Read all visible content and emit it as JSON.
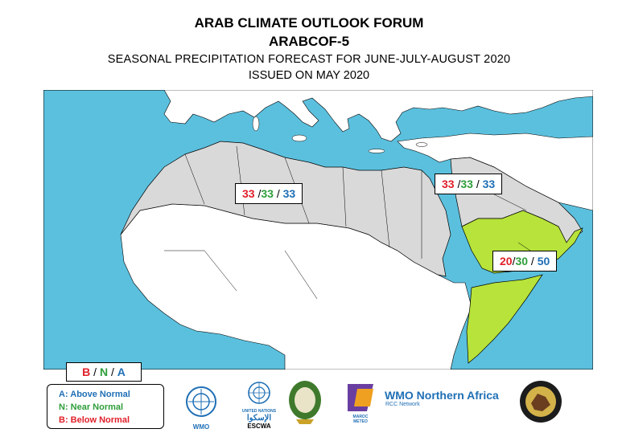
{
  "title": {
    "line1": "ARAB CLIMATE OUTLOOK FORUM",
    "line2": "ARABCOF-5",
    "line3": "SEASONAL PRECIPITATION FORECAST FOR JUNE-JULY-AUGUST 2020",
    "line4": "ISSUED ON MAY 2020"
  },
  "colors": {
    "sea": "#5bc0de",
    "region_climatology": "#d9d9d9",
    "region_above_normal": "#b7e33a",
    "land_other": "#ffffff",
    "below": "#e0202a",
    "near": "#2e9e3a",
    "above": "#1f6fb5"
  },
  "zones": {
    "north_africa": {
      "below": "33",
      "near": "33",
      "above": "33"
    },
    "arabia": {
      "below": "33",
      "near": "33",
      "above": "33"
    },
    "southeast": {
      "below": "20",
      "near": "30",
      "above": "50"
    }
  },
  "bna_header": {
    "b": "B",
    "n": "N",
    "a": "A"
  },
  "legend": {
    "above": "A: Above Normal",
    "near": "N: Near Normal",
    "below": "B: Below Normal"
  },
  "logos": {
    "wmo": "WMO",
    "escwa": "ESCWA",
    "escwa_arabic": "الإسكوا",
    "un_small": "UNITED NATIONS",
    "maroc": "MAROC METEO",
    "wmo_na_main": "WMO Northern Africa",
    "wmo_na_sub": "RCC Network"
  }
}
